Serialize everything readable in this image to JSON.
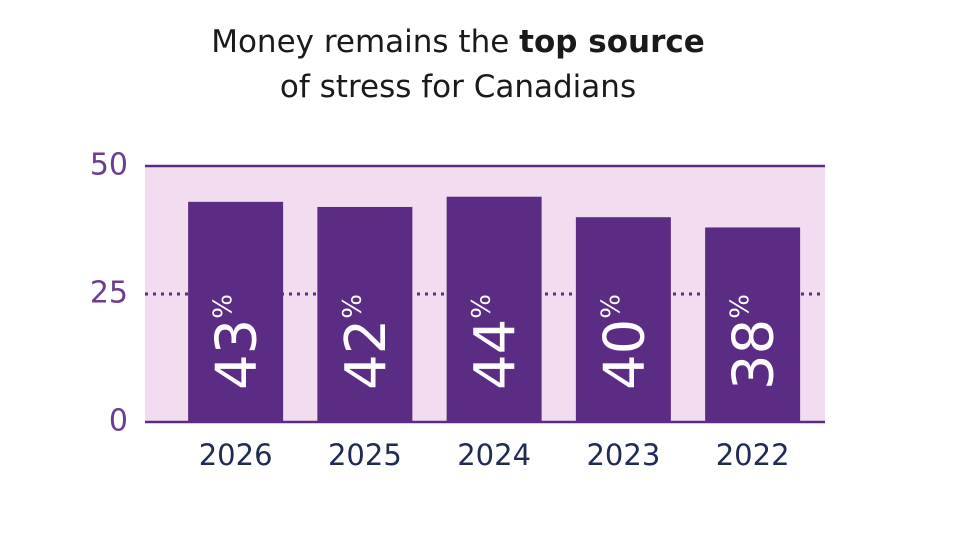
{
  "chart_data": {
    "type": "bar",
    "title": [
      [
        {
          "text": "Money remains the ",
          "bold": false
        },
        {
          "text": "top source",
          "bold": true
        }
      ],
      [
        {
          "text": "of stress for Canadians",
          "bold": false
        }
      ]
    ],
    "categories": [
      "2026",
      "2025",
      "2024",
      "2023",
      "2022"
    ],
    "values": [
      43,
      42,
      44,
      40,
      38
    ],
    "value_labels": [
      "43%",
      "42%",
      "44%",
      "40%",
      "38%"
    ],
    "color": "#5b2c83",
    "plot_background": "#f1ddef",
    "ylim": [
      0,
      50
    ],
    "yticks": [
      0,
      25,
      50
    ],
    "grid": true
  }
}
